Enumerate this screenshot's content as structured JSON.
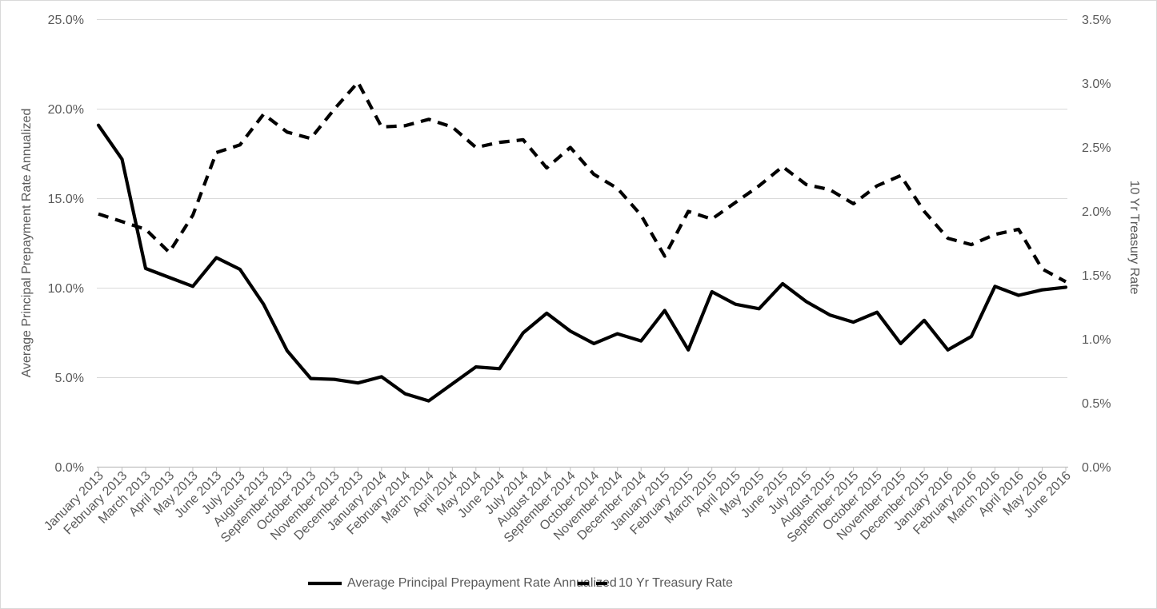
{
  "chart_data": {
    "type": "line",
    "categories": [
      "January 2013",
      "February 2013",
      "March 2013",
      "April 2013",
      "May 2013",
      "June 2013",
      "July 2013",
      "August 2013",
      "September 2013",
      "October 2013",
      "November 2013",
      "December 2013",
      "January 2014",
      "February 2014",
      "March 2014",
      "April 2014",
      "May 2014",
      "June 2014",
      "July 2014",
      "August 2014",
      "September 2014",
      "October 2014",
      "November 2014",
      "December 2014",
      "January 2015",
      "February 2015",
      "March 2015",
      "April 2015",
      "May 2015",
      "June 2015",
      "July 2015",
      "August 2015",
      "September 2015",
      "October 2015",
      "November 2015",
      "December 2015",
      "January 2016",
      "February 2016",
      "March 2016",
      "April 2016",
      "May 2016",
      "June 2016"
    ],
    "series": [
      {
        "name": "Average Principal Prepayment Rate Annualized",
        "axis": "left",
        "line_style": "solid",
        "color": "#000000",
        "values": [
          19.1,
          17.2,
          11.1,
          10.6,
          10.1,
          11.7,
          11.05,
          9.1,
          6.5,
          4.95,
          4.9,
          4.7,
          5.05,
          4.1,
          3.7,
          4.65,
          5.6,
          5.5,
          7.5,
          8.6,
          7.6,
          6.9,
          7.45,
          7.05,
          8.75,
          6.55,
          9.8,
          9.1,
          8.85,
          10.25,
          9.25,
          8.5,
          8.1,
          8.65,
          6.9,
          8.2,
          6.55,
          7.3,
          10.1,
          9.6,
          9.9,
          10.05
        ]
      },
      {
        "name": "10 Yr Treasury Rate",
        "axis": "right",
        "line_style": "dashed",
        "color": "#000000",
        "values": [
          1.98,
          1.92,
          1.86,
          1.68,
          1.97,
          2.46,
          2.52,
          2.76,
          2.62,
          2.57,
          2.8,
          3.01,
          2.66,
          2.67,
          2.72,
          2.66,
          2.5,
          2.54,
          2.56,
          2.34,
          2.5,
          2.29,
          2.18,
          1.97,
          1.65,
          2.0,
          1.94,
          2.07,
          2.2,
          2.35,
          2.21,
          2.17,
          2.06,
          2.2,
          2.28,
          2.0,
          1.79,
          1.74,
          1.82,
          1.86,
          1.55,
          1.45
        ]
      }
    ],
    "left_axis": {
      "title": "Average Principal Prepayment Rate Annualized",
      "min": 0,
      "max": 25,
      "step": 5,
      "tick_labels": [
        "0.0%",
        "5.0%",
        "10.0%",
        "15.0%",
        "20.0%",
        "25.0%"
      ]
    },
    "right_axis": {
      "title": "10 Yr Treasury Rate",
      "min": 0,
      "max": 3.5,
      "step": 0.5,
      "tick_labels": [
        "0.0%",
        "0.5%",
        "1.0%",
        "1.5%",
        "2.0%",
        "2.5%",
        "3.0%",
        "3.5%"
      ]
    },
    "grid": true,
    "legend_position": "bottom"
  },
  "colors": {
    "background": "#FFFFFF",
    "text": "#595959",
    "gridline": "#D9D9D9",
    "axis_line": "#BFBFBF",
    "series_line": "#000000"
  }
}
